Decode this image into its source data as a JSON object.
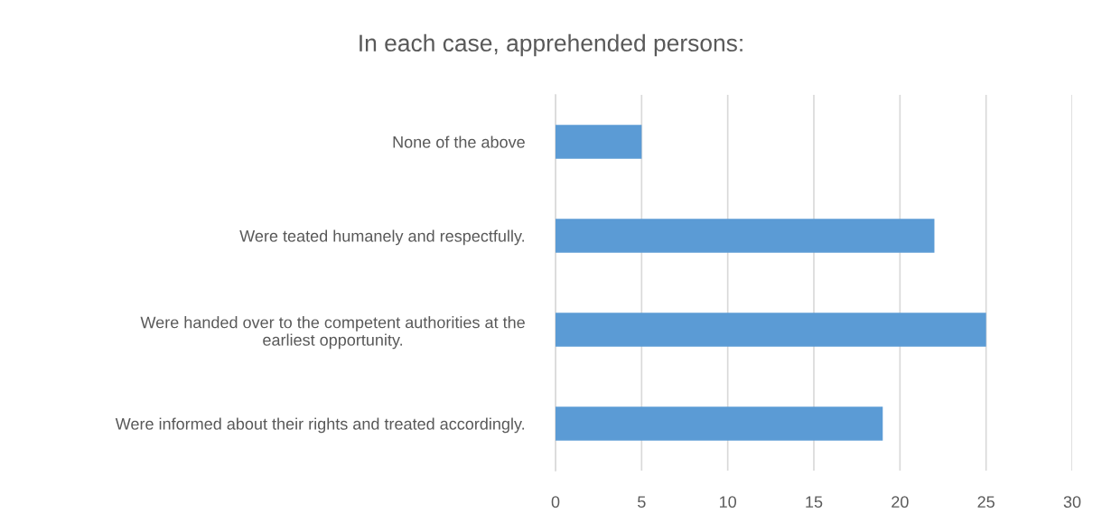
{
  "chart_data": {
    "type": "bar",
    "orientation": "horizontal",
    "title": "In each case, apprehended persons:",
    "categories": [
      "None of the above",
      "Were teated humanely and respectfully.",
      "Were handed over to the competent authorities at the\nearliest opportunity.",
      "Were informed about their rights and treated accordingly."
    ],
    "values": [
      5,
      22,
      25,
      19
    ],
    "color": "#5b9bd5",
    "xlim": [
      0,
      30
    ],
    "xticks": [
      0,
      5,
      10,
      15,
      20,
      25,
      30
    ],
    "grid": "x"
  }
}
